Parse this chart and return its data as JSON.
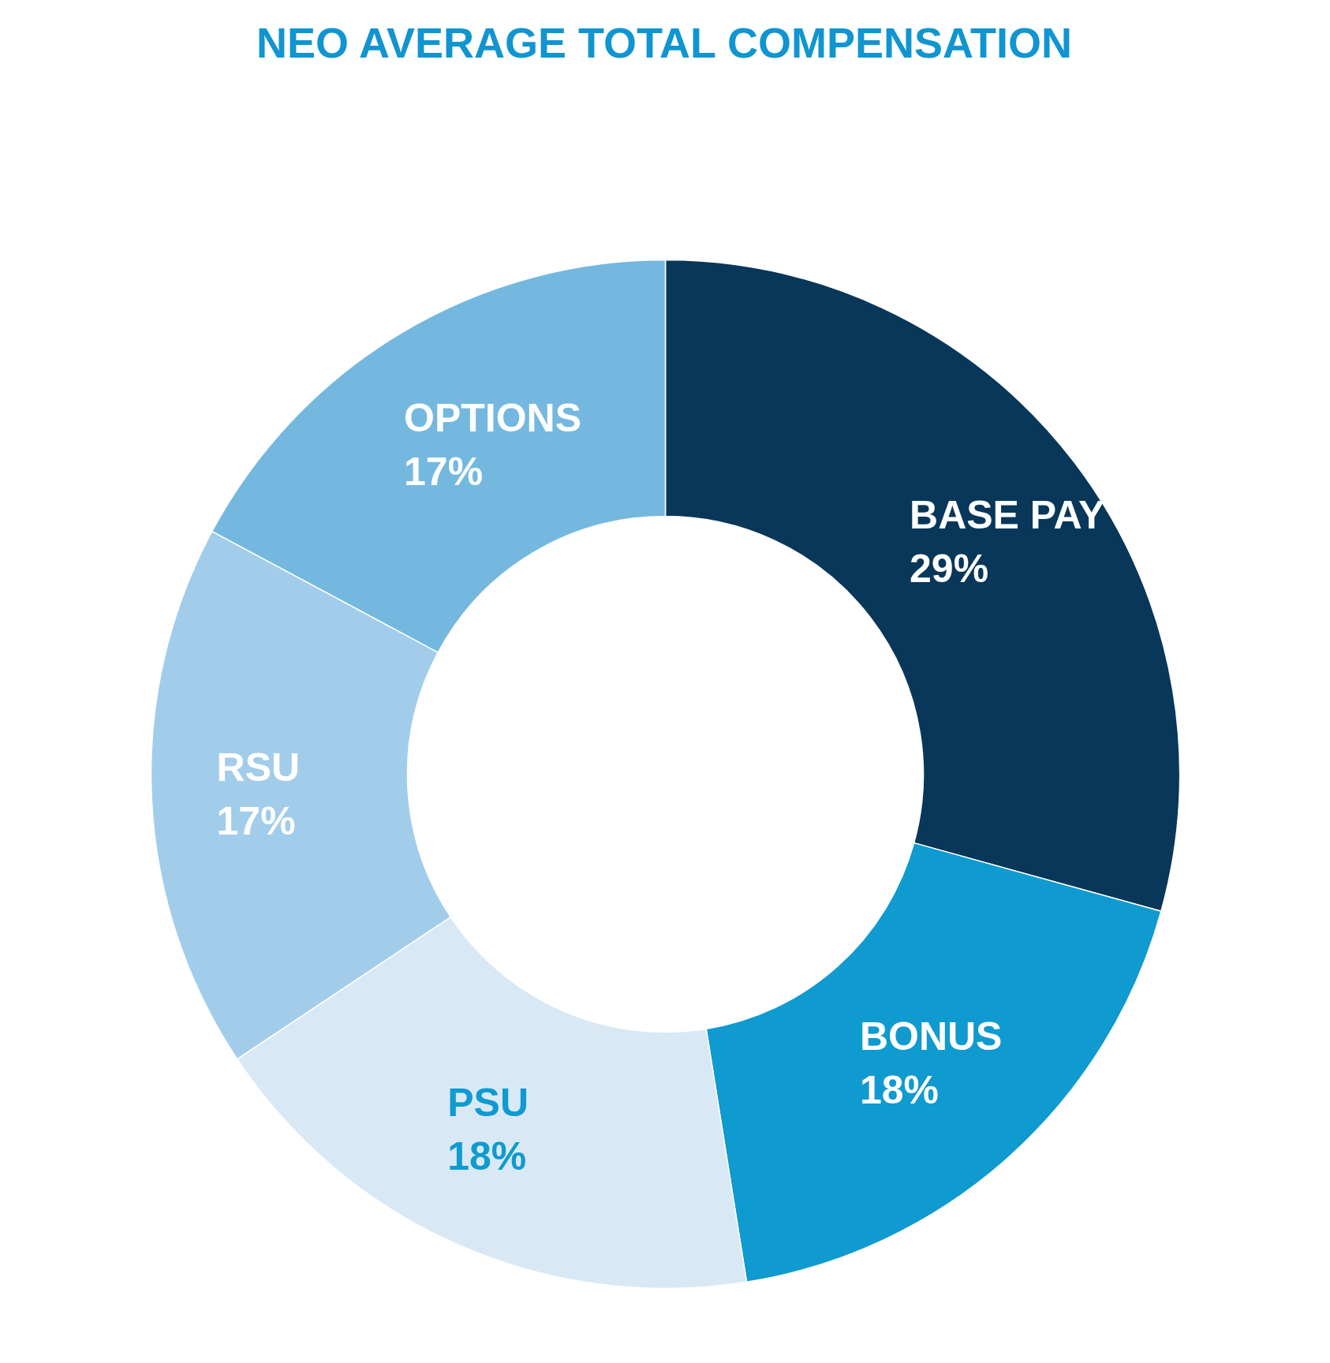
{
  "chart_data": {
    "type": "donut",
    "title": "NEO AVERAGE TOTAL COMPENSATION",
    "categories": [
      "BASE PAY",
      "BONUS",
      "PSU",
      "RSU",
      "OPTIONS"
    ],
    "values": [
      29,
      18,
      18,
      17,
      17
    ],
    "value_labels": [
      "29%",
      "18%",
      "18%",
      "17%",
      "17%"
    ],
    "colors": [
      "#08375a",
      "#0f9ad0",
      "#d8e9f5",
      "#a2cdea",
      "#74b8df"
    ]
  }
}
